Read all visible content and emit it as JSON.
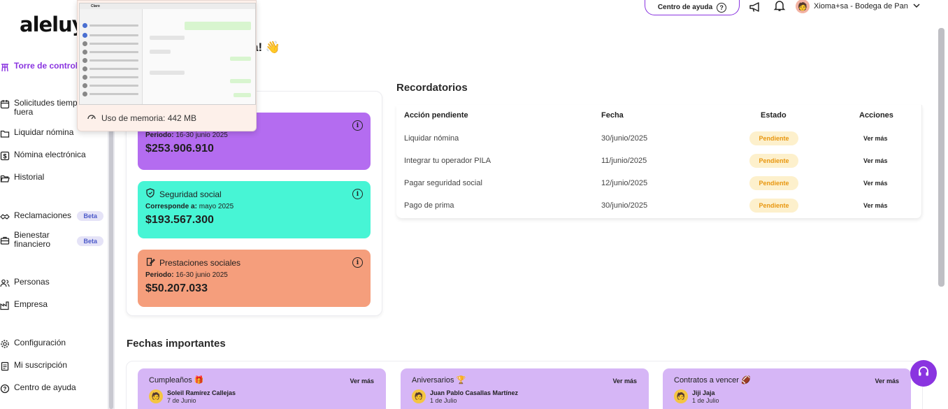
{
  "brand": {
    "logo": "aleluya"
  },
  "header": {
    "help_label": "Centro de ayuda",
    "user_name": "Xioma+sa - Bodega de Pan"
  },
  "greeting": "a! 👋",
  "sidebar": {
    "items": [
      {
        "label": "Torre de control",
        "icon": "tower-icon"
      },
      {
        "label": "Solicitudes tiemp fuera",
        "icon": "calendar-icon"
      },
      {
        "label": "Liquidar nómina",
        "icon": "folder-icon"
      },
      {
        "label": "Nómina electrónica",
        "icon": "dollar-icon"
      },
      {
        "label": "Historial",
        "icon": "folder-open-icon"
      },
      {
        "label": "Reclamaciones",
        "icon": "handshake-icon",
        "badge": "Beta"
      },
      {
        "label": "Bienestar financiero",
        "icon": "briefcase-icon",
        "badge": "Beta"
      },
      {
        "label": "Personas",
        "icon": "people-icon"
      },
      {
        "label": "Empresa",
        "icon": "factory-icon"
      },
      {
        "label": "Configuración",
        "icon": "gear-icon"
      },
      {
        "label": "Mi suscripción",
        "icon": "document-icon"
      },
      {
        "label": "Centro de ayuda",
        "icon": "help-icon"
      }
    ]
  },
  "popup": {
    "memory_label": "Uso de memoria: 442 MB",
    "thumbnail_title": "Claro"
  },
  "cards": [
    {
      "title": "",
      "sub_label": "Periodo:",
      "sub_value": "16-30 junio 2025",
      "amount": "$253.906.910",
      "color": "#b46cf0"
    },
    {
      "title": "Seguridad social",
      "sub_label": "Corresponde a:",
      "sub_value": "mayo 2025",
      "amount": "$193.567.300",
      "color": "#47f5d5"
    },
    {
      "title": "Prestaciones sociales",
      "sub_label": "Periodo:",
      "sub_value": "16-30 junio 2025",
      "amount": "$50.207.033",
      "color": "#f59e7c"
    }
  ],
  "reminders": {
    "title": "Recordatorios",
    "headers": [
      "Acción pendiente",
      "Fecha",
      "Estado",
      "Acciones"
    ],
    "rows": [
      {
        "action": "Liquidar nómina",
        "date": "30/junio/2025",
        "status": "Pendiente",
        "link": "Ver más"
      },
      {
        "action": "Integrar tu operador PILA",
        "date": "11/junio/2025",
        "status": "Pendiente",
        "link": "Ver más"
      },
      {
        "action": "Pagar seguridad social",
        "date": "12/junio/2025",
        "status": "Pendiente",
        "link": "Ver más"
      },
      {
        "action": "Pago de prima",
        "date": "30/junio/2025",
        "status": "Pendiente",
        "link": "Ver más"
      }
    ]
  },
  "important_dates": {
    "title": "Fechas importantes",
    "cards": [
      {
        "title": "Cumpleaños 🎁",
        "link": "Ver más",
        "person": "Soleil Ramírez Callejas",
        "date": "7 de Junio"
      },
      {
        "title": "Aniversarios 🏆",
        "link": "Ver más",
        "person": "Juan Pablo Casallas Martínez",
        "date": "1 de Julio"
      },
      {
        "title": "Contratos a vencer 🏈",
        "link": "Ver más",
        "person": "Jiji Jaja",
        "date": "1 de Julio"
      }
    ]
  },
  "colors": {
    "accent": "#8a34e0",
    "pending_bg": "#fdf0cc",
    "pending_text": "#e8960f",
    "dates_card": "#d6b6f6"
  }
}
